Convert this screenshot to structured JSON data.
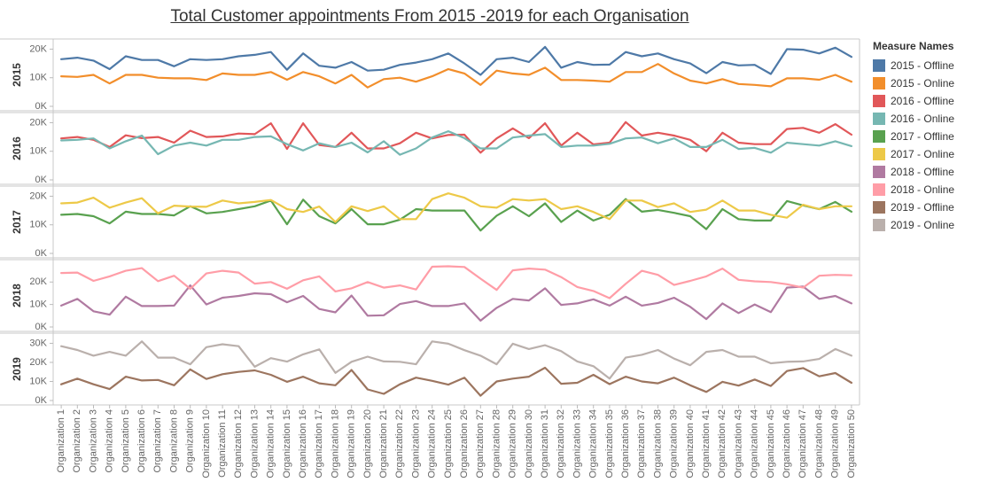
{
  "title": "Total Customer appointments From 2015 -2019 for each Organisation",
  "legend_title": "Measure Names",
  "chart_data": {
    "type": "line",
    "title": "Total Customer appointments From 2015 -2019 for each Organisation",
    "categories": [
      "Organization 1",
      "Organization 2",
      "Organization 3",
      "Organization 4",
      "Organization 5",
      "Organization 6",
      "Organization 7",
      "Organization 8",
      "Organization 9",
      "Organization 10",
      "Organization 11",
      "Organization 12",
      "Organization 13",
      "Organization 14",
      "Organization 15",
      "Organization 16",
      "Organization 17",
      "Organization 18",
      "Organization 19",
      "Organization 20",
      "Organization 21",
      "Organization 22",
      "Organization 23",
      "Organization 24",
      "Organization 25",
      "Organization 26",
      "Organization 27",
      "Organization 28",
      "Organization 29",
      "Organization 30",
      "Organization 31",
      "Organization 32",
      "Organization 33",
      "Organization 34",
      "Organization 35",
      "Organization 36",
      "Organization 37",
      "Organization 38",
      "Organization 39",
      "Organization 40",
      "Organization 41",
      "Organization 42",
      "Organization 43",
      "Organization 44",
      "Organization 45",
      "Organization 46",
      "Organization 47",
      "Organization 48",
      "Organization 49",
      "Organization 50"
    ],
    "legend_placement": "right",
    "grid": false,
    "panels": [
      {
        "row_label": "2015",
        "ylim": [
          0,
          22000
        ],
        "ticks": [
          0,
          10000,
          20000
        ],
        "tick_labels": [
          "0K",
          "10K",
          "20K"
        ],
        "series": [
          {
            "name": "2015 - Offline",
            "color": "#4e79a7",
            "values": [
              16500,
              17000,
              16000,
              13000,
              17500,
              16200,
              16200,
              14000,
              16500,
              16200,
              16500,
              17500,
              18000,
              19000,
              12800,
              18500,
              14200,
              13500,
              15500,
              12500,
              12800,
              14500,
              15300,
              16500,
              18500,
              15000,
              11000,
              16500,
              17000,
              15500,
              20800,
              13500,
              15500,
              14500,
              14600,
              19000,
              17500,
              18500,
              16500,
              15000,
              11600,
              15500,
              14300,
              14500,
              11300,
              20000,
              19800,
              18500,
              20500,
              17300
            ]
          },
          {
            "name": "2015 - Online",
            "color": "#f28e2b",
            "values": [
              10500,
              10300,
              11000,
              8000,
              11000,
              11000,
              10000,
              9800,
              9800,
              9200,
              11500,
              11000,
              11000,
              12000,
              9300,
              12000,
              10500,
              8000,
              11000,
              6600,
              9500,
              10000,
              8600,
              10500,
              13000,
              11500,
              7500,
              12500,
              11500,
              11000,
              13500,
              9200,
              9200,
              9000,
              8600,
              12000,
              12000,
              14800,
              11500,
              9000,
              8000,
              9500,
              7800,
              7500,
              7000,
              9800,
              9800,
              9300,
              11000,
              8600
            ]
          }
        ]
      },
      {
        "row_label": "2016",
        "ylim": [
          0,
          22000
        ],
        "ticks": [
          0,
          10000,
          20000
        ],
        "tick_labels": [
          "0K",
          "10K",
          "20K"
        ],
        "series": [
          {
            "name": "2016 - Offline",
            "color": "#e15759",
            "values": [
              14500,
              15000,
              14000,
              11500,
              15600,
              14600,
              15000,
              13000,
              17200,
              15000,
              15200,
              16200,
              16000,
              19800,
              10800,
              19800,
              12200,
              11500,
              16500,
              11000,
              11000,
              12800,
              16500,
              14500,
              15700,
              15800,
              9500,
              14500,
              18000,
              14600,
              19800,
              12000,
              16500,
              12400,
              13000,
              20200,
              15500,
              16500,
              15500,
              14000,
              10000,
              16500,
              13000,
              12500,
              12500,
              17800,
              18200,
              16500,
              19500,
              15800
            ]
          },
          {
            "name": "2016 - Online",
            "color": "#76b7b2",
            "values": [
              13800,
              14000,
              14500,
              11000,
              13500,
              15500,
              9000,
              12000,
              13000,
              12000,
              14000,
              14000,
              15000,
              15200,
              12500,
              10300,
              12800,
              11500,
              13000,
              9600,
              13500,
              8800,
              11000,
              14800,
              17000,
              14600,
              11000,
              11000,
              14800,
              15500,
              16000,
              11500,
              12000,
              12000,
              12600,
              14500,
              14800,
              12800,
              14500,
              11500,
              11500,
              14000,
              10800,
              11200,
              9500,
              13000,
              12500,
              12000,
              13500,
              11800
            ]
          }
        ]
      },
      {
        "row_label": "2017",
        "ylim": [
          0,
          22000
        ],
        "ticks": [
          0,
          10000,
          20000
        ],
        "tick_labels": [
          "0K",
          "10K",
          "20K"
        ],
        "series": [
          {
            "name": "2017 - Offline",
            "color": "#59a14f",
            "values": [
              13500,
              13800,
              13000,
              10500,
              14600,
              13800,
              13800,
              13300,
              16500,
              14000,
              14500,
              15500,
              16500,
              18500,
              10200,
              18800,
              13000,
              10500,
              15500,
              10200,
              10200,
              11800,
              15500,
              15000,
              15000,
              15000,
              8000,
              13200,
              16500,
              13000,
              17500,
              11000,
              15000,
              11500,
              13500,
              19000,
              14600,
              15200,
              14200,
              13000,
              8500,
              15500,
              12000,
              11500,
              11500,
              18300,
              16800,
              15500,
              18000,
              14600
            ]
          },
          {
            "name": "2017 - Online",
            "color": "#edc948",
            "values": [
              17500,
              17800,
              19500,
              16000,
              17800,
              19300,
              14000,
              16700,
              16400,
              16300,
              18500,
              17500,
              18000,
              18700,
              15500,
              14500,
              16400,
              11000,
              16500,
              14800,
              16500,
              12000,
              12000,
              19000,
              21000,
              19500,
              16500,
              16000,
              19000,
              18500,
              19000,
              15500,
              16500,
              14500,
              12000,
              18500,
              18500,
              16200,
              17500,
              14500,
              15300,
              18500,
              15000,
              15000,
              13500,
              12500,
              17000,
              15500,
              16500,
              16500
            ]
          }
        ]
      },
      {
        "row_label": "2018",
        "ylim": [
          0,
          28000
        ],
        "ticks": [
          0,
          10000,
          20000
        ],
        "tick_labels": [
          "0K",
          "10K",
          "20K"
        ],
        "series": [
          {
            "name": "2018 - Offline",
            "color": "#b07aa1",
            "values": [
              9500,
              12500,
              7000,
              5500,
              13500,
              9300,
              9300,
              9500,
              18500,
              10000,
              13000,
              13800,
              15000,
              14600,
              11000,
              13800,
              8000,
              6500,
              14000,
              5000,
              5200,
              10200,
              11500,
              9300,
              9300,
              10500,
              2800,
              8500,
              12500,
              11800,
              17200,
              9800,
              10500,
              12300,
              9500,
              13500,
              9500,
              10700,
              13000,
              9000,
              3500,
              10500,
              6200,
              10000,
              6600,
              17500,
              18000,
              12500,
              13800,
              10500
            ]
          },
          {
            "name": "2018 - Online",
            "color": "#ff9da7",
            "values": [
              24000,
              24200,
              20500,
              22500,
              25000,
              26200,
              20400,
              22800,
              17000,
              23800,
              25000,
              24200,
              19300,
              20000,
              17000,
              20800,
              22500,
              15800,
              17200,
              20000,
              17500,
              18500,
              16700,
              26800,
              27000,
              26700,
              21500,
              16500,
              25200,
              26000,
              25500,
              22200,
              17800,
              16000,
              12800,
              19200,
              25000,
              23200,
              18700,
              20500,
              22500,
              26000,
              21000,
              20300,
              20000,
              19000,
              17500,
              22800,
              23200,
              23000
            ]
          }
        ]
      },
      {
        "row_label": "2019",
        "ylim": [
          0,
          33000
        ],
        "ticks": [
          0,
          10000,
          20000,
          30000
        ],
        "tick_labels": [
          "0K",
          "10K",
          "20K",
          "30K"
        ],
        "series": [
          {
            "name": "2019 - Offline",
            "color": "#9c755f",
            "values": [
              8500,
              11500,
              8500,
              6000,
              12500,
              10500,
              10800,
              8000,
              16300,
              11300,
              13800,
              15000,
              15800,
              13500,
              9800,
              12500,
              9000,
              8000,
              16000,
              5800,
              3500,
              8500,
              12000,
              10300,
              8300,
              12000,
              2500,
              10000,
              11500,
              12500,
              17200,
              8800,
              9300,
              13500,
              8600,
              12500,
              10000,
              9000,
              12000,
              8000,
              4500,
              9800,
              7800,
              11000,
              7600,
              15500,
              17000,
              12700,
              14400,
              9300
            ]
          },
          {
            "name": "2019 - Online",
            "color": "#bab0ac",
            "values": [
              28500,
              26500,
              23500,
              25500,
              23500,
              31000,
              22500,
              22500,
              19000,
              28000,
              29500,
              28500,
              17700,
              22200,
              20400,
              24200,
              26800,
              14500,
              20300,
              23000,
              20500,
              20300,
              19000,
              31000,
              29800,
              26400,
              23500,
              19000,
              29800,
              27000,
              29000,
              25900,
              20500,
              18000,
              11500,
              22500,
              24000,
              26500,
              22000,
              18500,
              25500,
              26500,
              23000,
              23000,
              19500,
              20300,
              20500,
              21800,
              27000,
              23500
            ]
          }
        ]
      }
    ]
  }
}
